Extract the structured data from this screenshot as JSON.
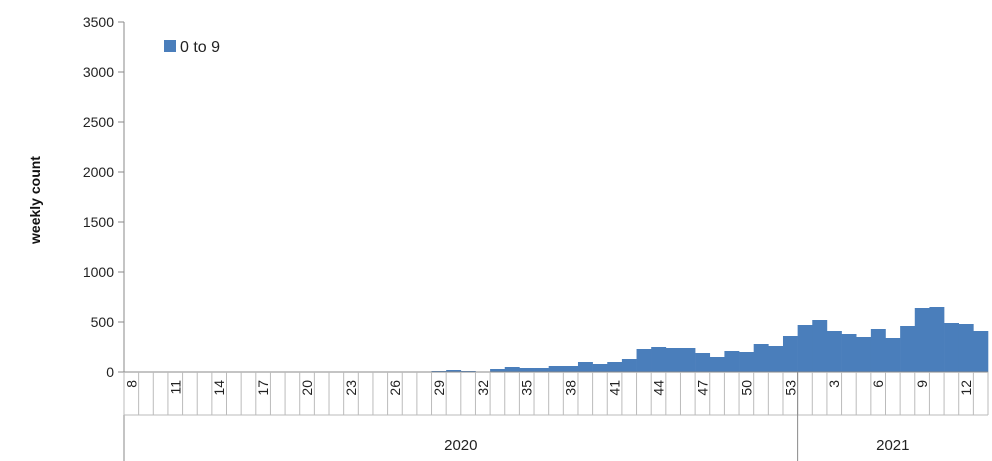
{
  "chart_data": {
    "type": "bar",
    "ylabel": "weekly count",
    "ylim": [
      0,
      3500
    ],
    "yticks": [
      0,
      500,
      1000,
      1500,
      2000,
      2500,
      3000,
      3500
    ],
    "legend": {
      "position": "top-left",
      "entries": [
        "0 to 9"
      ]
    },
    "colors": {
      "bar": "#4a7ebb",
      "axis": "#888888"
    },
    "grid": false,
    "series": [
      {
        "name": "0 to 9",
        "weeks": [
          8,
          9,
          10,
          11,
          12,
          13,
          14,
          15,
          16,
          17,
          18,
          19,
          20,
          21,
          22,
          23,
          24,
          25,
          26,
          27,
          28,
          29,
          30,
          31,
          32,
          33,
          34,
          35,
          36,
          37,
          38,
          39,
          40,
          41,
          42,
          43,
          44,
          45,
          46,
          47,
          48,
          49,
          50,
          51,
          52,
          53,
          1,
          2,
          3,
          4,
          5,
          6,
          7,
          8,
          9,
          10,
          11,
          12,
          13
        ],
        "values": [
          0,
          0,
          0,
          0,
          0,
          0,
          0,
          0,
          0,
          0,
          0,
          0,
          0,
          0,
          0,
          0,
          0,
          0,
          0,
          0,
          0,
          10,
          20,
          10,
          0,
          30,
          50,
          40,
          40,
          60,
          60,
          100,
          80,
          100,
          130,
          230,
          250,
          240,
          240,
          190,
          150,
          210,
          200,
          280,
          260,
          360,
          470,
          520,
          410,
          380,
          350,
          430,
          340,
          460,
          640,
          650,
          490,
          480,
          410
        ]
      }
    ],
    "x_tick_labels": [
      "8",
      "11",
      "14",
      "17",
      "20",
      "23",
      "26",
      "29",
      "32",
      "35",
      "38",
      "41",
      "44",
      "47",
      "50",
      "53",
      "3",
      "6",
      "9",
      "12"
    ],
    "x_tick_weeks_index": [
      0,
      3,
      6,
      9,
      12,
      15,
      18,
      21,
      24,
      27,
      30,
      33,
      36,
      39,
      42,
      45,
      48,
      51,
      54,
      57
    ],
    "year_groups": [
      {
        "label": "2020",
        "start_index": 0,
        "end_index": 45
      },
      {
        "label": "2021",
        "start_index": 46,
        "end_index": 58
      }
    ]
  }
}
